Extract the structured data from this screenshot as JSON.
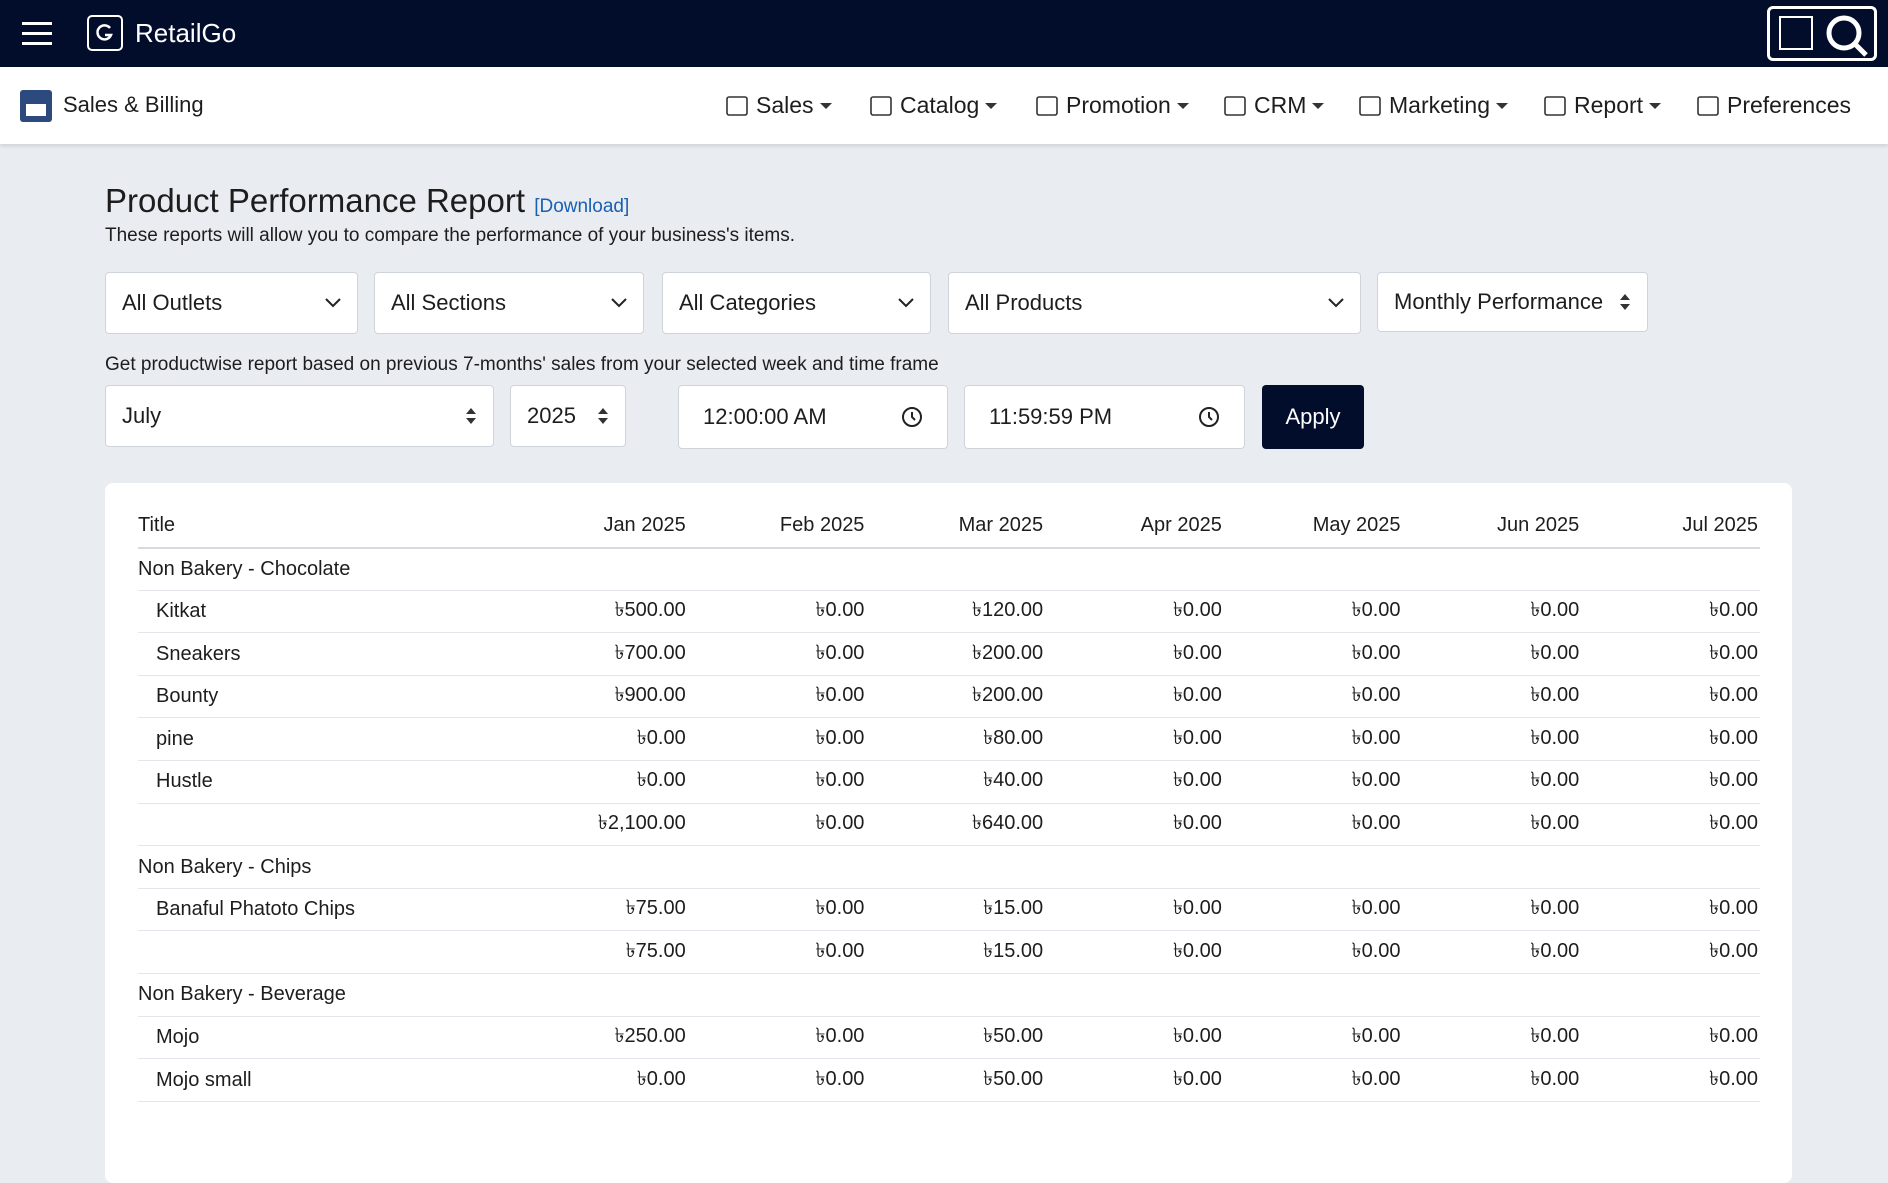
{
  "header": {
    "brand": "RetailGo"
  },
  "nav": {
    "app_title": "Sales & Billing",
    "items": [
      "Sales",
      "Catalog",
      "Promotion",
      "CRM",
      "Marketing",
      "Report",
      "Preferences"
    ]
  },
  "page": {
    "title": "Product Performance Report",
    "download": "[Download]",
    "description": "These reports will allow you to compare the performance of your business's items."
  },
  "filters": [
    "All Outlets",
    "All Sections",
    "All Categories",
    "All Products",
    "Monthly Performance"
  ],
  "hint": "Get productwise report based on previous 7-months' sales from your selected week and time frame",
  "controls": {
    "month": "July",
    "year": "2025",
    "start_time": "12:00:00 AM",
    "end_time": "11:59:59 PM",
    "apply": "Apply"
  },
  "table": {
    "columns": [
      "Title",
      "Jan 2025",
      "Feb 2025",
      "Mar 2025",
      "Apr 2025",
      "May 2025",
      "Jun 2025",
      "Jul 2025"
    ],
    "groups": [
      {
        "name": "Non Bakery - Chocolate",
        "rows": [
          {
            "title": "Kitkat",
            "values": [
              "৳500.00",
              "৳0.00",
              "৳120.00",
              "৳0.00",
              "৳0.00",
              "৳0.00",
              "৳0.00"
            ]
          },
          {
            "title": "Sneakers",
            "values": [
              "৳700.00",
              "৳0.00",
              "৳200.00",
              "৳0.00",
              "৳0.00",
              "৳0.00",
              "৳0.00"
            ]
          },
          {
            "title": "Bounty",
            "values": [
              "৳900.00",
              "৳0.00",
              "৳200.00",
              "৳0.00",
              "৳0.00",
              "৳0.00",
              "৳0.00"
            ]
          },
          {
            "title": "pine",
            "values": [
              "৳0.00",
              "৳0.00",
              "৳80.00",
              "৳0.00",
              "৳0.00",
              "৳0.00",
              "৳0.00"
            ]
          },
          {
            "title": "Hustle",
            "values": [
              "৳0.00",
              "৳0.00",
              "৳40.00",
              "৳0.00",
              "৳0.00",
              "৳0.00",
              "৳0.00"
            ]
          }
        ],
        "total": [
          "৳2,100.00",
          "৳0.00",
          "৳640.00",
          "৳0.00",
          "৳0.00",
          "৳0.00",
          "৳0.00"
        ]
      },
      {
        "name": "Non Bakery - Chips",
        "rows": [
          {
            "title": "Banaful Phatoto Chips",
            "values": [
              "৳75.00",
              "৳0.00",
              "৳15.00",
              "৳0.00",
              "৳0.00",
              "৳0.00",
              "৳0.00"
            ]
          }
        ],
        "total": [
          "৳75.00",
          "৳0.00",
          "৳15.00",
          "৳0.00",
          "৳0.00",
          "৳0.00",
          "৳0.00"
        ]
      },
      {
        "name": "Non Bakery - Beverage",
        "rows": [
          {
            "title": "Mojo",
            "values": [
              "৳250.00",
              "৳0.00",
              "৳50.00",
              "৳0.00",
              "৳0.00",
              "৳0.00",
              "৳0.00"
            ]
          },
          {
            "title": "Mojo small",
            "values": [
              "৳0.00",
              "৳0.00",
              "৳50.00",
              "৳0.00",
              "৳0.00",
              "৳0.00",
              "৳0.00"
            ]
          }
        ]
      }
    ]
  }
}
